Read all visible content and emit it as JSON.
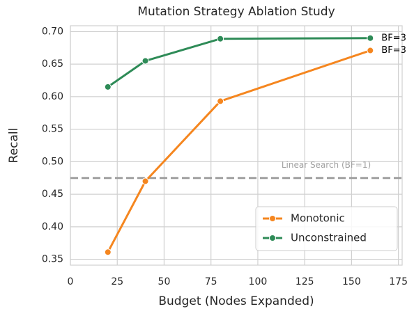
{
  "chart_data": {
    "type": "line",
    "title": "Mutation Strategy Ablation Study",
    "xlabel": "Budget (Nodes Expanded)",
    "ylabel": "Recall",
    "x": [
      20,
      40,
      80,
      160
    ],
    "series": [
      {
        "name": "Monotonic",
        "color": "#f5861f",
        "values": [
          0.361,
          0.47,
          0.593,
          0.671
        ],
        "end_label": "BF=3"
      },
      {
        "name": "Unconstrained",
        "color": "#2e8b57",
        "values": [
          0.615,
          0.655,
          0.689,
          0.69
        ],
        "end_label": "BF=3"
      }
    ],
    "reference_line": {
      "value": 0.475,
      "label": "Linear Search (BF=1)",
      "color": "#a0a0a0"
    },
    "xlim": [
      0,
      177
    ],
    "ylim": [
      0.341,
      0.709
    ],
    "xticks": [
      0,
      25,
      50,
      75,
      100,
      125,
      150,
      175
    ],
    "yticks": [
      {
        "value": 0.35,
        "label": "0.35"
      },
      {
        "value": 0.4,
        "label": "0.40"
      },
      {
        "value": 0.45,
        "label": "0.45"
      },
      {
        "value": 0.5,
        "label": "0.50"
      },
      {
        "value": 0.55,
        "label": "0.55"
      },
      {
        "value": 0.6,
        "label": "0.60"
      },
      {
        "value": 0.65,
        "label": "0.65"
      },
      {
        "value": 0.7,
        "label": "0.70"
      }
    ],
    "grid": true,
    "legend": "lower right"
  }
}
